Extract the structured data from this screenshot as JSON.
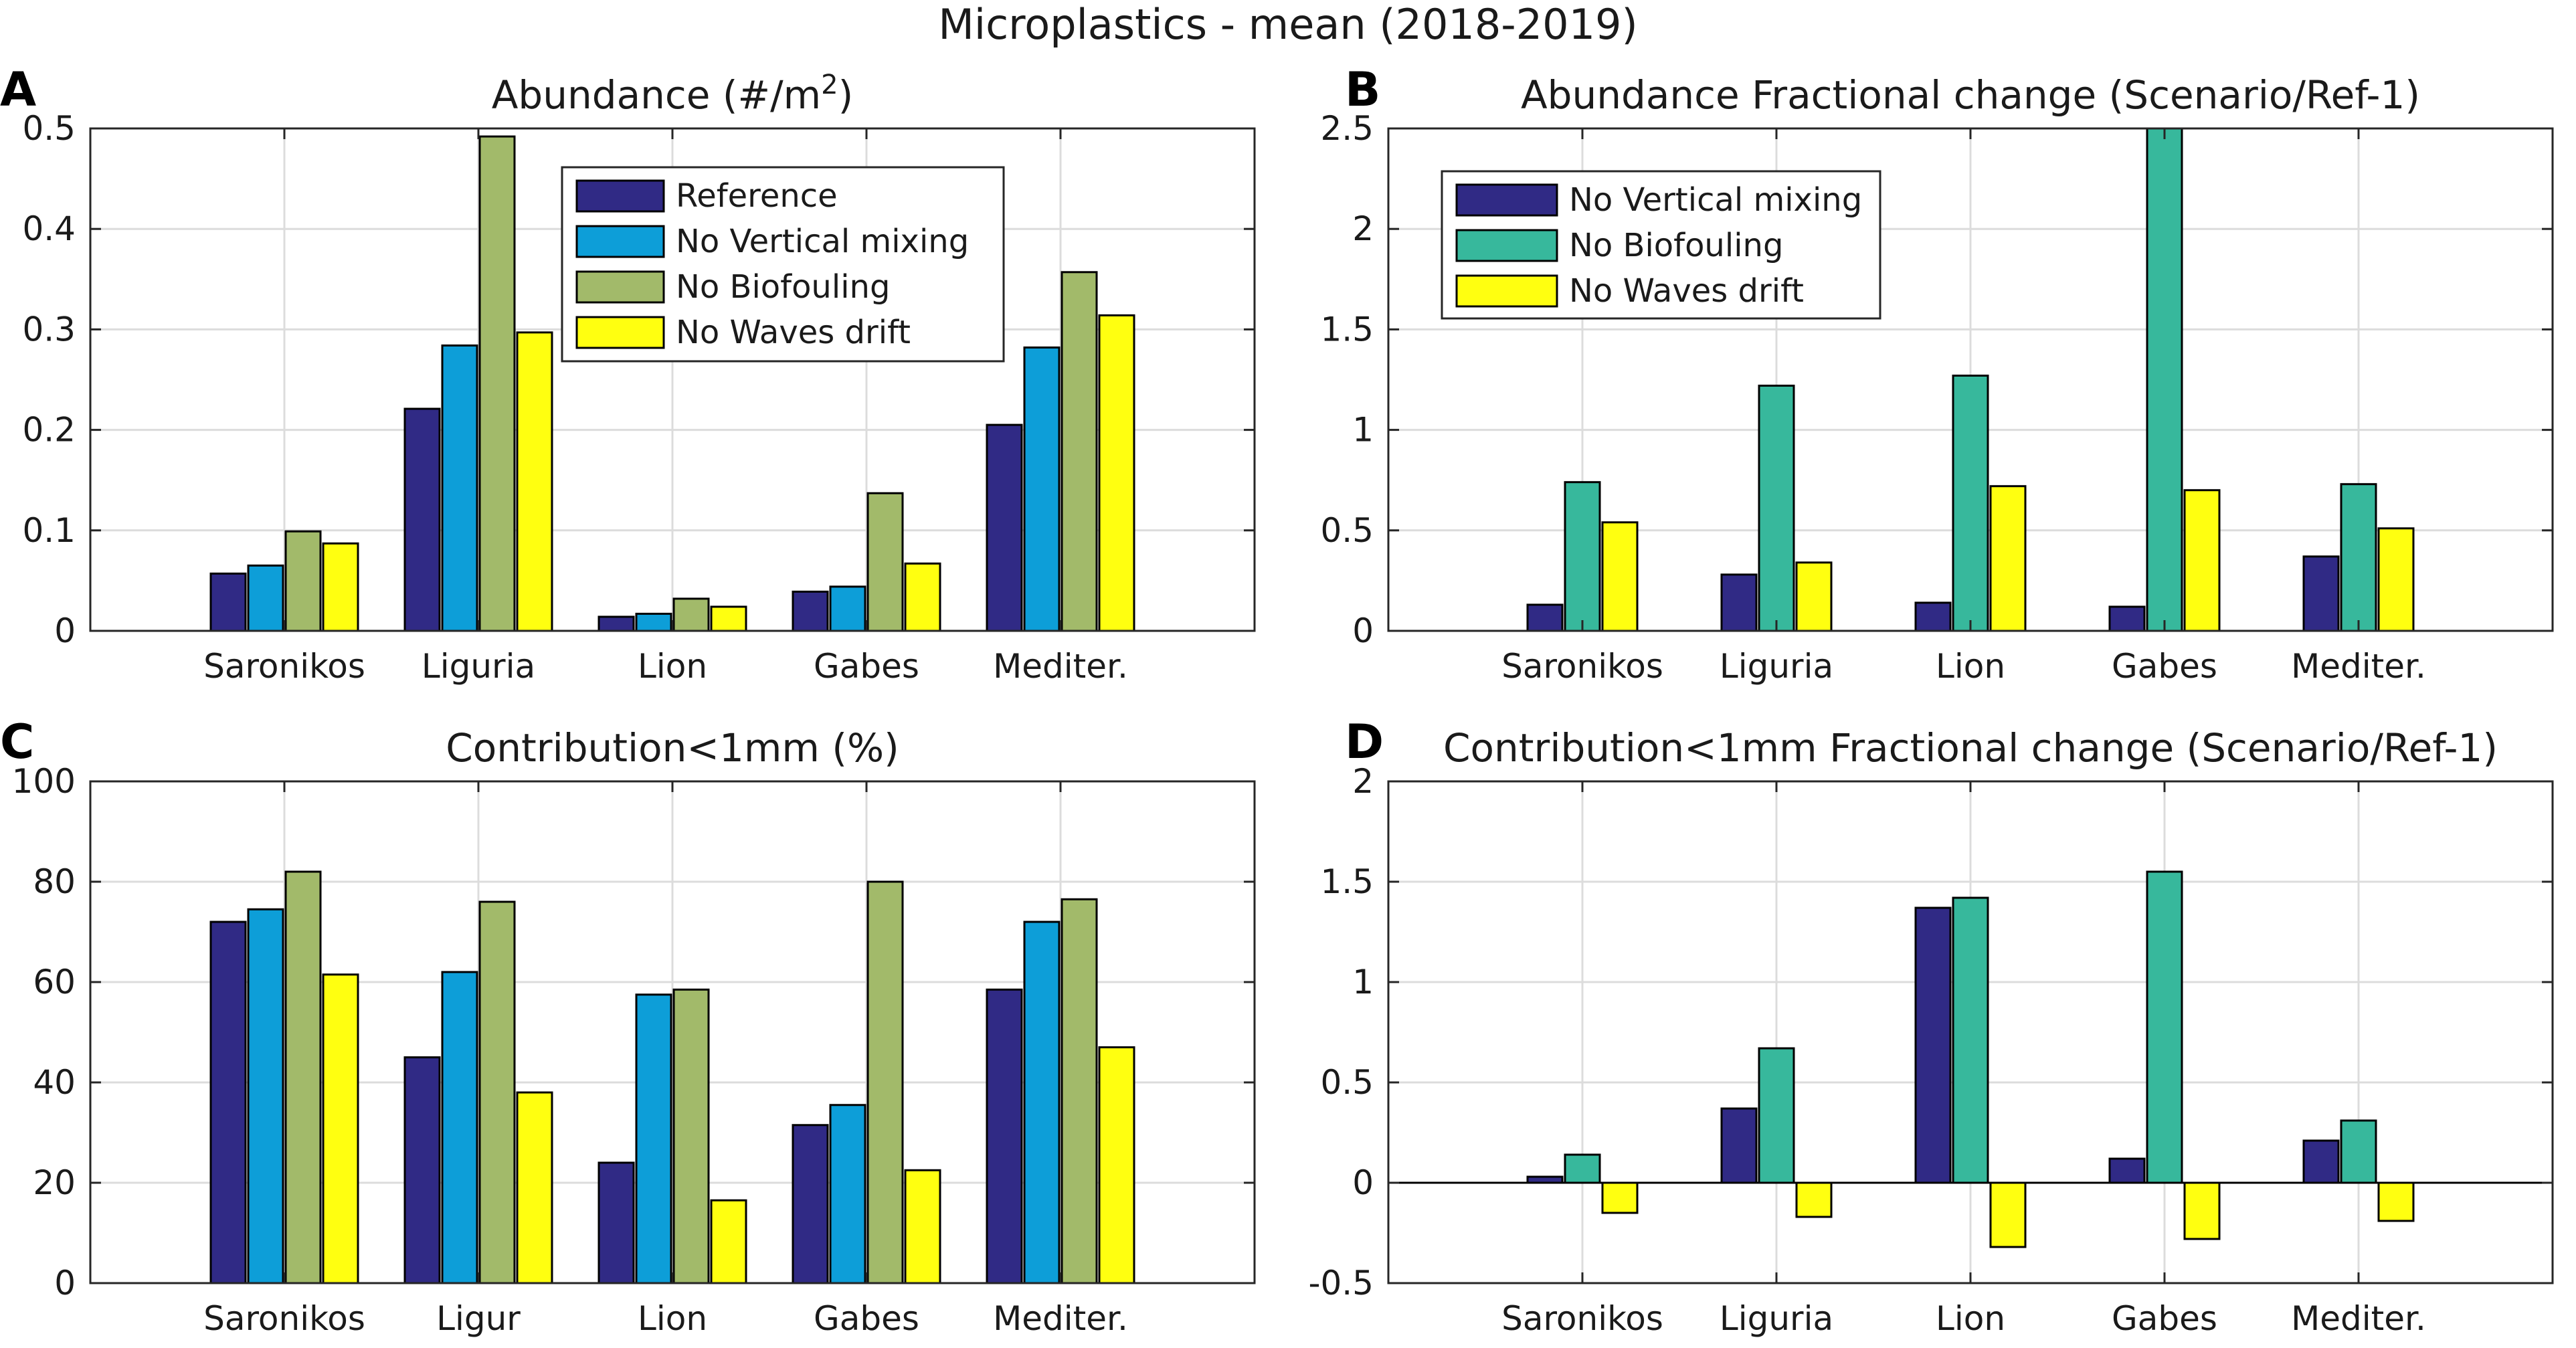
{
  "figure_title": "Microplastics - mean (2018-2019)",
  "colors": {
    "reference": "#302a85",
    "no_vertical_mixing": "#0d9ed8",
    "no_biofouling": "#a2ba6a",
    "no_biofouling_fractional": "#37b89c",
    "no_waves_drift": "#ffff10"
  },
  "chart_data": [
    {
      "panel": "A",
      "type": "bar",
      "title": "Abundance (#/m",
      "title_superscript": "2",
      "title_suffix": ")",
      "categories": [
        "Saronikos",
        "Liguria",
        "Lion",
        "Gabes",
        "Mediter."
      ],
      "ylim": [
        0,
        0.5
      ],
      "yticks": [
        0,
        0.1,
        0.2,
        0.3,
        0.4,
        0.5
      ],
      "ytick_labels": [
        "0",
        "0.1",
        "0.2",
        "0.3",
        "0.4",
        "0.5"
      ],
      "grid": true,
      "legend": "top-center",
      "series": [
        {
          "name": "Reference",
          "color_key": "reference",
          "values": [
            0.057,
            0.221,
            0.014,
            0.039,
            0.205
          ]
        },
        {
          "name": "No Vertical mixing",
          "color_key": "no_vertical_mixing",
          "values": [
            0.065,
            0.284,
            0.017,
            0.044,
            0.282
          ]
        },
        {
          "name": "No Biofouling",
          "color_key": "no_biofouling",
          "values": [
            0.099,
            0.492,
            0.032,
            0.137,
            0.357
          ]
        },
        {
          "name": "No Waves drift",
          "color_key": "no_waves_drift",
          "values": [
            0.087,
            0.297,
            0.024,
            0.067,
            0.314
          ]
        }
      ]
    },
    {
      "panel": "B",
      "type": "bar",
      "title": "Abundance Fractional change (Scenario/Ref-1)",
      "categories": [
        "Saronikos",
        "Liguria",
        "Lion",
        "Gabes",
        "Mediter."
      ],
      "ylim": [
        0,
        2.5
      ],
      "yticks": [
        0,
        0.5,
        1,
        1.5,
        2,
        2.5
      ],
      "ytick_labels": [
        "0",
        "0.5",
        "1",
        "1.5",
        "2",
        "2.5"
      ],
      "grid": true,
      "legend": "top-left",
      "series": [
        {
          "name": "No Vertical mixing",
          "color_key": "reference",
          "values": [
            0.13,
            0.28,
            0.14,
            0.12,
            0.37
          ]
        },
        {
          "name": "No Biofouling",
          "color_key": "no_biofouling_fractional",
          "values": [
            0.74,
            1.22,
            1.27,
            2.5,
            0.73
          ]
        },
        {
          "name": "No Waves drift",
          "color_key": "no_waves_drift",
          "values": [
            0.54,
            0.34,
            0.72,
            0.7,
            0.51
          ]
        }
      ]
    },
    {
      "panel": "C",
      "type": "bar",
      "title": "Contribution<1mm (%)",
      "categories": [
        "Saronikos",
        "Ligur",
        "Lion",
        "Gabes",
        "Mediter."
      ],
      "ylim": [
        0,
        100
      ],
      "yticks": [
        0,
        20,
        40,
        60,
        80,
        100
      ],
      "ytick_labels": [
        "0",
        "20",
        "40",
        "60",
        "80",
        "100"
      ],
      "grid": true,
      "legend": "none",
      "series": [
        {
          "name": "Reference",
          "color_key": "reference",
          "values": [
            72,
            45,
            24,
            31.5,
            58.5
          ]
        },
        {
          "name": "No Vertical mixing",
          "color_key": "no_vertical_mixing",
          "values": [
            74.5,
            62,
            57.5,
            35.5,
            72
          ]
        },
        {
          "name": "No Biofouling",
          "color_key": "no_biofouling",
          "values": [
            82,
            76,
            58.5,
            80,
            76.5
          ]
        },
        {
          "name": "No Waves drift",
          "color_key": "no_waves_drift",
          "values": [
            61.5,
            38,
            16.5,
            22.5,
            47
          ]
        }
      ]
    },
    {
      "panel": "D",
      "type": "bar",
      "title": "Contribution<1mm Fractional change (Scenario/Ref-1)",
      "categories": [
        "Saronikos",
        "Liguria",
        "Lion",
        "Gabes",
        "Mediter."
      ],
      "ylim": [
        -0.5,
        2
      ],
      "yticks": [
        -0.5,
        0,
        0.5,
        1,
        1.5,
        2
      ],
      "ytick_labels": [
        "-0.5",
        "0",
        "0.5",
        "1",
        "1.5",
        "2"
      ],
      "grid": true,
      "legend": "none",
      "series": [
        {
          "name": "No Vertical mixing",
          "color_key": "reference",
          "values": [
            0.03,
            0.37,
            1.37,
            0.12,
            0.21
          ]
        },
        {
          "name": "No Biofouling",
          "color_key": "no_biofouling_fractional",
          "values": [
            0.14,
            0.67,
            1.42,
            1.55,
            0.31
          ]
        },
        {
          "name": "No Waves drift",
          "color_key": "no_waves_drift",
          "values": [
            -0.15,
            -0.17,
            -0.32,
            -0.28,
            -0.19
          ]
        }
      ]
    }
  ]
}
